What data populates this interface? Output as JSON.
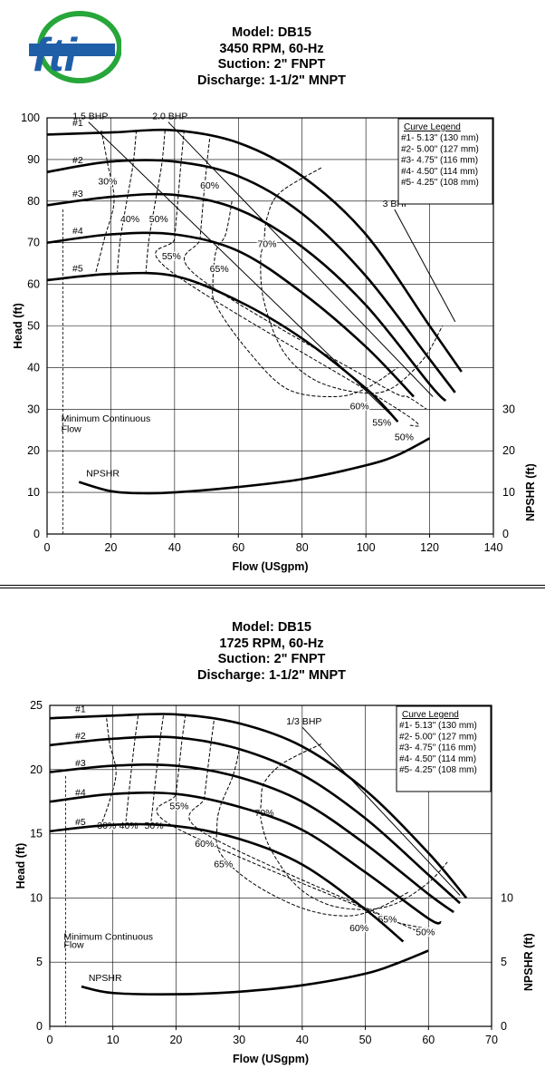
{
  "logo": {
    "text": "fti",
    "colors": {
      "ring": "#27a63a",
      "text": "#1f5fa8"
    }
  },
  "chart_data": [
    {
      "type": "line",
      "title_lines": [
        "Model: DB15",
        "3450 RPM, 60-Hz",
        "Suction: 2\" FNPT",
        "Discharge: 1-1/2\" MNPT"
      ],
      "xlabel": "Flow (USgpm)",
      "ylabel": "Head (ft)",
      "y2label": "NPSHR (ft)",
      "xlim": [
        0,
        140
      ],
      "ylim": [
        0,
        100
      ],
      "xticks": [
        0,
        20,
        40,
        60,
        80,
        100,
        120,
        140
      ],
      "yticks": [
        0,
        10,
        20,
        30,
        40,
        50,
        60,
        70,
        80,
        90,
        100
      ],
      "y2ticks": [
        0,
        10,
        20,
        30
      ],
      "grid": true,
      "legend": {
        "title": "Curve Legend",
        "position": "top-right",
        "entries": [
          "#1- 5.13\" (130 mm)",
          "#2- 5.00\" (127 mm)",
          "#3- 4.75\" (116 mm)",
          "#4- 4.50\" (114 mm)",
          "#5- 4.25\" (108 mm)"
        ]
      },
      "series": [
        {
          "name": "#1",
          "x": [
            0,
            20,
            40,
            60,
            80,
            100,
            120,
            130
          ],
          "y": [
            96,
            96.5,
            97,
            94,
            86,
            72,
            50,
            39
          ]
        },
        {
          "name": "#2",
          "x": [
            0,
            20,
            40,
            60,
            80,
            100,
            120,
            128
          ],
          "y": [
            87,
            89.5,
            89.5,
            86,
            77,
            62,
            42,
            34
          ]
        },
        {
          "name": "#3",
          "x": [
            0,
            20,
            40,
            60,
            80,
            100,
            120,
            125
          ],
          "y": [
            79,
            81,
            81.5,
            78,
            69,
            55,
            36,
            32
          ]
        },
        {
          "name": "#4",
          "x": [
            0,
            20,
            40,
            60,
            80,
            100,
            115
          ],
          "y": [
            70,
            72,
            72,
            68,
            58,
            45,
            33
          ]
        },
        {
          "name": "#5",
          "x": [
            0,
            20,
            40,
            60,
            80,
            100,
            110
          ],
          "y": [
            61,
            62.5,
            62,
            56,
            47,
            35,
            27
          ]
        }
      ],
      "npshr": {
        "name": "NPSHR",
        "x": [
          10,
          20,
          30,
          40,
          60,
          80,
          100,
          110,
          120
        ],
        "y": [
          12.5,
          10.3,
          9.8,
          10,
          11.3,
          13.2,
          16.5,
          19,
          23
        ]
      },
      "min_flow": {
        "label": [
          "Minimum Continuous",
          "Flow"
        ],
        "x": 5
      },
      "bhp_lines": [
        {
          "label": "1.5 BHP",
          "x": [
            13,
            110
          ],
          "y": [
            99,
            27
          ]
        },
        {
          "label": "2.0 BHP",
          "x": [
            38,
            121
          ],
          "y": [
            99,
            33
          ]
        },
        {
          "label": "3 BHP",
          "x": [
            109,
            128
          ],
          "y": [
            78,
            51
          ]
        }
      ],
      "efficiency": [
        {
          "label": "30%",
          "x": [
            17,
            19,
            21,
            18,
            15
          ],
          "y": [
            97,
            89,
            80,
            71,
            62
          ],
          "lx": 19,
          "ly": 84
        },
        {
          "label": "40%",
          "x": [
            28,
            27,
            25,
            23,
            22
          ],
          "y": [
            97,
            89,
            80,
            71,
            63
          ],
          "lx": 26,
          "ly": 75
        },
        {
          "label": "50%",
          "x": [
            37,
            36,
            34,
            32,
            31
          ],
          "y": [
            97,
            89,
            80,
            71,
            63
          ],
          "lx": 35,
          "ly": 75
        },
        {
          "label": "55%",
          "x": [
            43,
            42,
            41,
            40,
            39,
            110,
            114
          ],
          "y": [
            97,
            89,
            80,
            71,
            63,
            30,
            26
          ],
          "lx": 39,
          "ly": 66
        },
        {
          "label": "60%",
          "x": [
            51,
            50,
            49,
            48,
            47,
            104,
            113,
            119
          ],
          "y": [
            95,
            88,
            80,
            71,
            62,
            36,
            33,
            30
          ],
          "lx": 51,
          "ly": 83
        },
        {
          "label": "65%",
          "x": [
            58,
            56,
            53,
            52,
            53,
            62,
            75,
            90,
            100,
            110
          ],
          "y": [
            80,
            72,
            68,
            60,
            55,
            45,
            35,
            33,
            35,
            40
          ],
          "lx": 54,
          "ly": 63
        },
        {
          "label": "70%",
          "x": [
            86,
            73,
            69,
            68,
            67,
            68,
            74,
            84,
            98,
            108,
            118,
            124
          ],
          "y": [
            88,
            82,
            76,
            70,
            66,
            56,
            44,
            37,
            34,
            35,
            42,
            50
          ],
          "lx": 69,
          "ly": 69
        }
      ],
      "eff_end_labels": [
        {
          "label": "60%",
          "x": 98,
          "y": 30
        },
        {
          "label": "55%",
          "x": 105,
          "y": 26
        },
        {
          "label": "50%",
          "x": 112,
          "y": 22.5
        }
      ]
    },
    {
      "type": "line",
      "title_lines": [
        "Model: DB15",
        "1725 RPM, 60-Hz",
        "Suction: 2\" FNPT",
        "Discharge: 1-1/2\" MNPT"
      ],
      "xlabel": "Flow (USgpm)",
      "ylabel": "Head (ft)",
      "y2label": "NPSHR (ft)",
      "xlim": [
        0,
        70
      ],
      "ylim": [
        0,
        25
      ],
      "xticks": [
        0,
        10,
        20,
        30,
        40,
        50,
        60,
        70
      ],
      "yticks": [
        0,
        5,
        10,
        15,
        20,
        25
      ],
      "y2ticks": [
        0,
        5,
        10
      ],
      "grid": true,
      "legend": {
        "title": "Curve Legend",
        "position": "top-right",
        "entries": [
          "#1- 5.13\" (130 mm)",
          "#2- 5.00\" (127 mm)",
          "#3- 4.75\" (116 mm)",
          "#4- 4.50\" (114 mm)",
          "#5- 4.25\" (108 mm)"
        ]
      },
      "series": [
        {
          "name": "#1",
          "x": [
            0,
            10,
            20,
            30,
            40,
            50,
            60,
            66
          ],
          "y": [
            24,
            24.2,
            24.3,
            23.6,
            21.8,
            18.4,
            13.5,
            10
          ]
        },
        {
          "name": "#2",
          "x": [
            0,
            10,
            20,
            30,
            40,
            50,
            60,
            65
          ],
          "y": [
            21.9,
            22.4,
            22.5,
            21.6,
            19.6,
            16.2,
            11.8,
            9.6
          ]
        },
        {
          "name": "#3",
          "x": [
            0,
            10,
            20,
            30,
            40,
            50,
            60,
            64
          ],
          "y": [
            19.8,
            20.3,
            20.3,
            19.4,
            17.5,
            14.2,
            10.3,
            8.9
          ]
        },
        {
          "name": "#4",
          "x": [
            0,
            10,
            20,
            30,
            40,
            50,
            60,
            62
          ],
          "y": [
            17.5,
            18.1,
            18.1,
            17.1,
            15.3,
            12,
            8.4,
            8.1
          ]
        },
        {
          "name": "#5",
          "x": [
            0,
            10,
            20,
            30,
            40,
            50,
            56
          ],
          "y": [
            15.2,
            15.7,
            15.6,
            14.6,
            12.6,
            9.1,
            6.6
          ]
        }
      ],
      "npshr": {
        "name": "NPSHR",
        "x": [
          5,
          10,
          20,
          30,
          40,
          50,
          55,
          60
        ],
        "y": [
          3.1,
          2.6,
          2.5,
          2.7,
          3.2,
          4.1,
          4.9,
          5.9
        ]
      },
      "min_flow": {
        "label": [
          "Minimum Continuous",
          "Flow"
        ],
        "x": 2.5
      },
      "bhp_lines": [
        {
          "label": "1/3 BHP",
          "x": [
            40,
            65
          ],
          "y": [
            23.3,
            10.2
          ]
        }
      ],
      "efficiency": [
        {
          "label": "30%",
          "x": [
            9,
            9.5,
            10.5,
            9.5,
            8
          ],
          "y": [
            24,
            22,
            19.8,
            17.6,
            15.5
          ],
          "lx": 9,
          "ly": 15.4
        },
        {
          "label": "40%",
          "x": [
            14,
            13.5,
            13,
            12.5,
            12
          ],
          "y": [
            24.2,
            22.4,
            20.3,
            18,
            15.7
          ],
          "lx": 12.5,
          "ly": 15.4
        },
        {
          "label": "50%",
          "x": [
            18,
            17.5,
            17,
            16.5,
            16
          ],
          "y": [
            24.2,
            22.4,
            20.3,
            18,
            15.7
          ],
          "lx": 16.5,
          "ly": 15.4
        },
        {
          "label": "55%",
          "x": [
            21.5,
            21,
            20.5,
            20,
            19.5,
            56,
            58.5
          ],
          "y": [
            24.3,
            22.5,
            20.3,
            18.1,
            15.6,
            7.9,
            7.3
          ],
          "lx": 20.5,
          "ly": 16.9
        },
        {
          "label": "60%",
          "x": [
            26,
            25.5,
            25,
            24.5,
            24,
            52,
            55,
            61
          ],
          "y": [
            23.8,
            21.9,
            19.9,
            17.8,
            15.2,
            8.8,
            8.1,
            7.5
          ],
          "lx": 24.5,
          "ly": 14
        },
        {
          "label": "65%",
          "x": [
            30,
            29,
            27,
            26.5,
            27,
            32,
            40,
            47,
            52,
            57
          ],
          "y": [
            21.5,
            19.5,
            17.1,
            15.5,
            13.5,
            11.2,
            9.2,
            8.6,
            9.2,
            10.5
          ],
          "lx": 27.5,
          "ly": 12.4
        },
        {
          "label": "70%",
          "x": [
            43,
            37,
            34,
            33.5,
            33.5,
            35,
            39,
            44,
            50,
            55,
            60,
            63
          ],
          "y": [
            22,
            20.5,
            19,
            17.5,
            16,
            13.8,
            11,
            9.5,
            9.1,
            9.6,
            11.2,
            12.8
          ],
          "lx": 34,
          "ly": 16.4
        }
      ],
      "eff_end_labels": [
        {
          "label": "60%",
          "x": 49,
          "y": 7.4
        },
        {
          "label": "55%",
          "x": 53.5,
          "y": 8.1
        },
        {
          "label": "50%",
          "x": 59.5,
          "y": 7.1
        }
      ]
    }
  ]
}
